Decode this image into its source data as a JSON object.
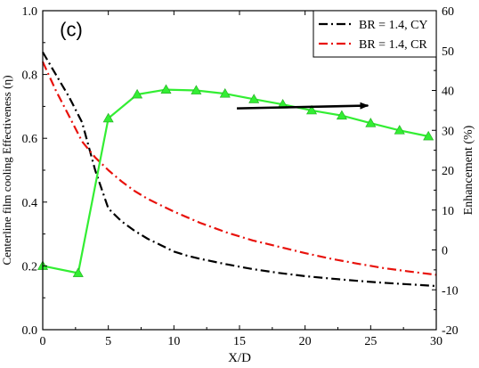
{
  "chart_data": {
    "type": "line",
    "panel_label": "(c)",
    "xlabel": "X/D",
    "ylabel_left": "Centerline film cooling Effectiveness (η)",
    "ylabel_right": "Enhancement (%)",
    "xlim": [
      0,
      30
    ],
    "ylim_left": [
      0.0,
      1.0
    ],
    "ylim_right": [
      -20,
      60
    ],
    "x_ticks": [
      "0",
      "5",
      "10",
      "15",
      "20",
      "25",
      "30"
    ],
    "y_ticks_left": [
      "0.0",
      "0.2",
      "0.4",
      "0.6",
      "0.8",
      "1.0"
    ],
    "y_ticks_right": [
      "-20",
      "-10",
      "0",
      "10",
      "20",
      "30",
      "40",
      "50",
      "60"
    ],
    "grid": false,
    "legend_position": "top-right",
    "series": [
      {
        "name": "BR = 1.4, CY",
        "axis": "left",
        "color": "#000000",
        "style": "dash-dot",
        "x": [
          0,
          1,
          2,
          3,
          4,
          5,
          6,
          7,
          8,
          9,
          10,
          11,
          12,
          14,
          16,
          18,
          20,
          22,
          24,
          26,
          28,
          30
        ],
        "y": [
          0.87,
          0.8,
          0.73,
          0.65,
          0.5,
          0.38,
          0.34,
          0.31,
          0.285,
          0.265,
          0.245,
          0.232,
          0.222,
          0.205,
          0.19,
          0.178,
          0.168,
          0.16,
          0.153,
          0.147,
          0.142,
          0.137
        ]
      },
      {
        "name": "BR = 1.4, CR",
        "axis": "left",
        "color": "#e8120c",
        "style": "dash-dot",
        "x": [
          0,
          1,
          2,
          3,
          4,
          5,
          6,
          7,
          8,
          9,
          10,
          12,
          14,
          16,
          18,
          20,
          22,
          24,
          26,
          28,
          30
        ],
        "y": [
          0.84,
          0.75,
          0.67,
          0.59,
          0.54,
          0.5,
          0.465,
          0.435,
          0.41,
          0.39,
          0.37,
          0.335,
          0.305,
          0.28,
          0.26,
          0.24,
          0.222,
          0.207,
          0.193,
          0.182,
          0.172
        ]
      },
      {
        "name": "",
        "axis": "right",
        "color": "#33ee33",
        "style": "solid",
        "marker": "triangle",
        "x": [
          0,
          2.7,
          5,
          7.2,
          9.4,
          11.7,
          13.9,
          16.1,
          18.3,
          20.5,
          22.8,
          25,
          27.2,
          29.4
        ],
        "y": [
          -4,
          -5.8,
          33,
          39,
          40.2,
          40,
          39.2,
          37.8,
          36.5,
          35,
          33.7,
          31.8,
          30,
          28.5
        ]
      }
    ],
    "annotation": "right-pointing arrow indicating the green curve belongs to the right axis"
  }
}
